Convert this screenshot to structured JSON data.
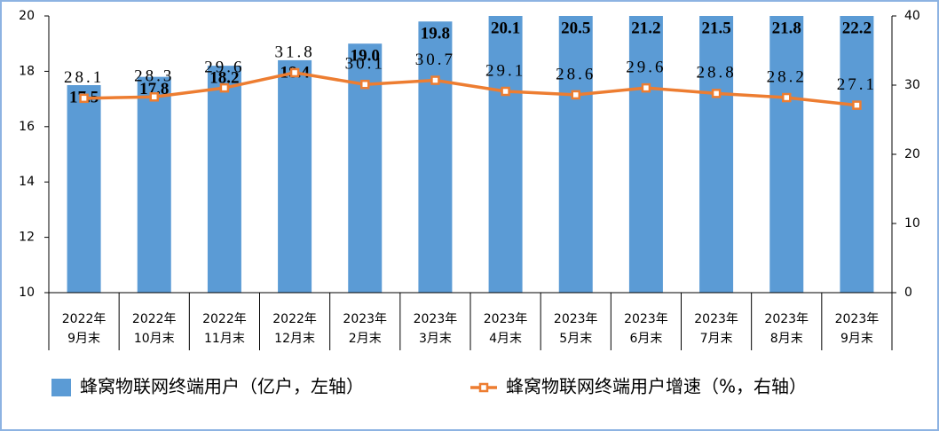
{
  "chart_data": {
    "type": "bar_line",
    "categories": [
      [
        "2022年",
        "9月末"
      ],
      [
        "2022年",
        "10月末"
      ],
      [
        "2022年",
        "11月末"
      ],
      [
        "2022年",
        "12月末"
      ],
      [
        "2023年",
        "2月末"
      ],
      [
        "2023年",
        "3月末"
      ],
      [
        "2023年",
        "4月末"
      ],
      [
        "2023年",
        "5月末"
      ],
      [
        "2023年",
        "6月末"
      ],
      [
        "2023年",
        "7月末"
      ],
      [
        "2023年",
        "8月末"
      ],
      [
        "2023年",
        "9月末"
      ]
    ],
    "series": [
      {
        "name": "蜂窝物联网终端用户（亿户，左轴）",
        "type": "bar",
        "color": "#5b9bd5",
        "values": [
          17.5,
          17.8,
          18.2,
          18.4,
          19.0,
          19.8,
          20.1,
          20.5,
          21.2,
          21.5,
          21.8,
          22.2
        ],
        "value_labels": [
          "17.5",
          "17.8",
          "18.2",
          "18.4",
          "19.0",
          "19.8",
          "20.1",
          "20.5",
          "21.2",
          "21.5",
          "21.8",
          "22.2"
        ]
      },
      {
        "name": "蜂窝物联网终端用户增速（%，右轴）",
        "type": "line",
        "axis": "y2",
        "color": "#ed7d31",
        "values": [
          28.1,
          28.3,
          29.6,
          31.8,
          30.1,
          30.7,
          29.1,
          28.6,
          29.6,
          28.8,
          28.2,
          27.1
        ]
      }
    ],
    "ylim": [
      10,
      20
    ],
    "yticks": [
      10,
      12,
      14,
      16,
      18,
      20
    ],
    "y2lim": [
      0,
      40
    ],
    "y2ticks": [
      0,
      10,
      20,
      30,
      40
    ],
    "legend": "bottom"
  }
}
